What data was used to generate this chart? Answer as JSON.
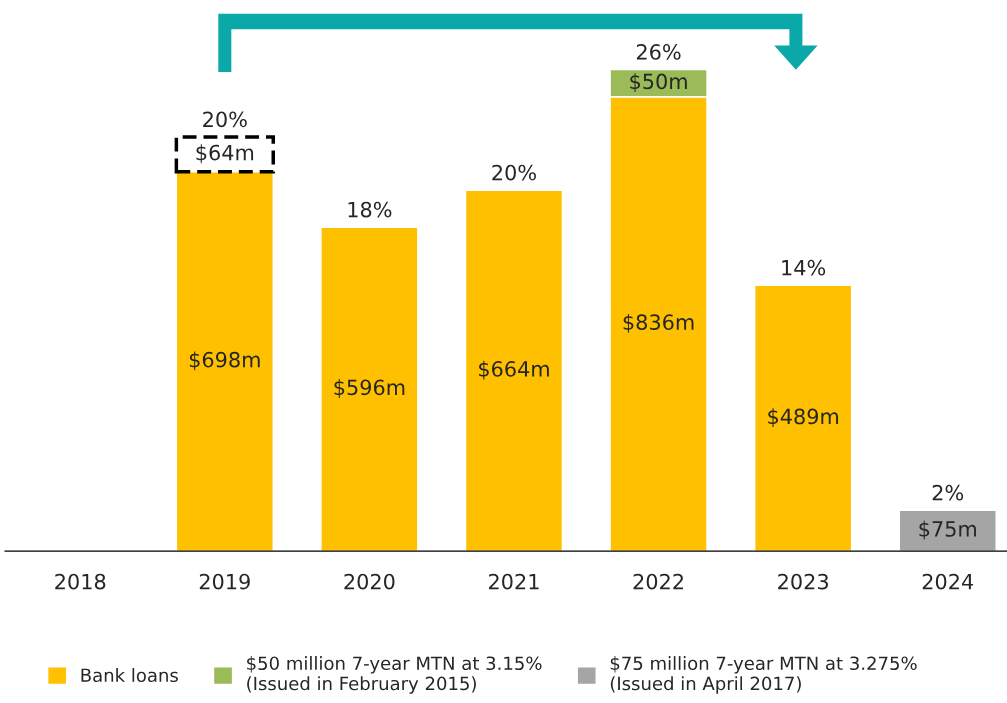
{
  "chart_data": {
    "type": "bar",
    "stacked": true,
    "legend": "bottom",
    "grid": false,
    "categories": [
      "2018",
      "2019",
      "2020",
      "2021",
      "2022",
      "2023",
      "2024"
    ],
    "series": [
      {
        "name": "Bank loans",
        "color": "#ffc000",
        "values": [
          null,
          698,
          596,
          664,
          836,
          489,
          null
        ],
        "value_labels": [
          null,
          "$698m",
          "$596m",
          "$664m",
          "$836m",
          "$489m",
          null
        ]
      },
      {
        "name": "$50 million 7-year MTN at 3.15%\n(Issued in February 2015)",
        "color": "#9bbb59",
        "values": [
          null,
          null,
          null,
          null,
          50,
          null,
          null
        ],
        "value_labels": [
          null,
          null,
          null,
          null,
          "$50m",
          null,
          null
        ]
      },
      {
        "name": "$75 million 7-year MTN at 3.275%\n(Issued in April 2017)",
        "color": "#a5a5a5",
        "values": [
          null,
          null,
          null,
          null,
          null,
          null,
          75
        ],
        "value_labels": [
          null,
          null,
          null,
          null,
          null,
          null,
          "$75m"
        ]
      },
      {
        "color": "#ffffff",
        "line_style": "dashed",
        "values": [
          null,
          64,
          null,
          null,
          null,
          null,
          null
        ],
        "value_labels": [
          null,
          "$64m",
          null,
          null,
          null,
          null,
          null
        ]
      }
    ],
    "annotations": [
      {
        "text": "20%",
        "x": "2019",
        "y": 762
      },
      {
        "text": "18%",
        "x": "2020",
        "y": 596
      },
      {
        "text": "20%",
        "x": "2021",
        "y": 664
      },
      {
        "text": "26%",
        "x": "2022",
        "y": 886
      },
      {
        "text": "14%",
        "x": "2023",
        "y": 489
      },
      {
        "text": "2%",
        "x": "2024",
        "y": 75
      }
    ]
  }
}
